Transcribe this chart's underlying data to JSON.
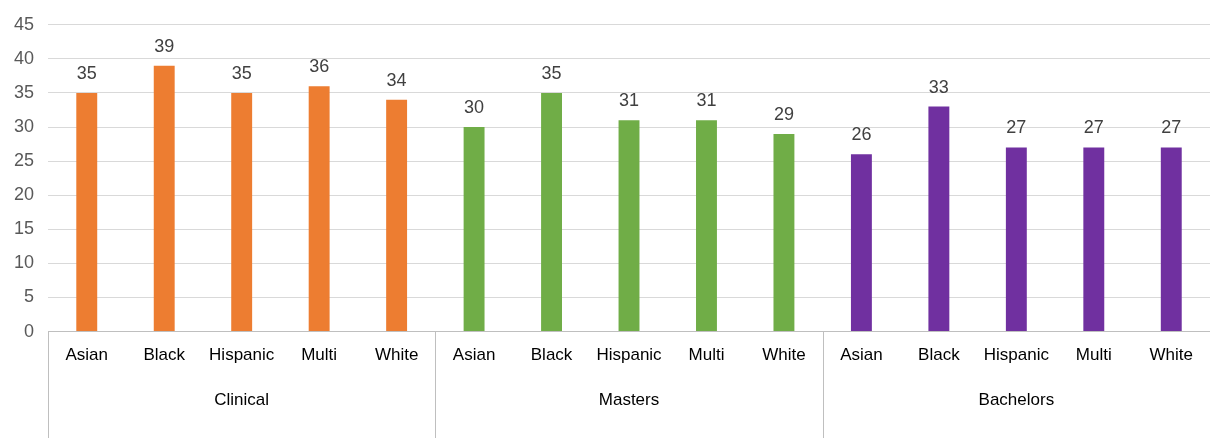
{
  "chart_data": {
    "type": "bar",
    "categories": [
      "Asian",
      "Black",
      "Hispanic",
      "Multi",
      "White",
      "Asian",
      "Black",
      "Hispanic",
      "Multi",
      "White",
      "Asian",
      "Black",
      "Hispanic",
      "Multi",
      "White"
    ],
    "values": [
      35,
      39,
      35,
      36,
      34,
      30,
      35,
      31,
      31,
      29,
      26,
      33,
      27,
      27,
      27
    ],
    "colors": [
      "#ed7d31",
      "#ed7d31",
      "#ed7d31",
      "#ed7d31",
      "#ed7d31",
      "#70ad47",
      "#70ad47",
      "#70ad47",
      "#70ad47",
      "#70ad47",
      "#7030a0",
      "#7030a0",
      "#7030a0",
      "#7030a0",
      "#7030a0"
    ],
    "annotations": [
      "Clinical",
      "Masters",
      "Bachelors"
    ],
    "ylim": [
      0,
      45
    ],
    "yticks": [
      0,
      5,
      10,
      15,
      20,
      25,
      30,
      35,
      40,
      45
    ],
    "grid": "y",
    "legend": false,
    "data_labels": true
  }
}
